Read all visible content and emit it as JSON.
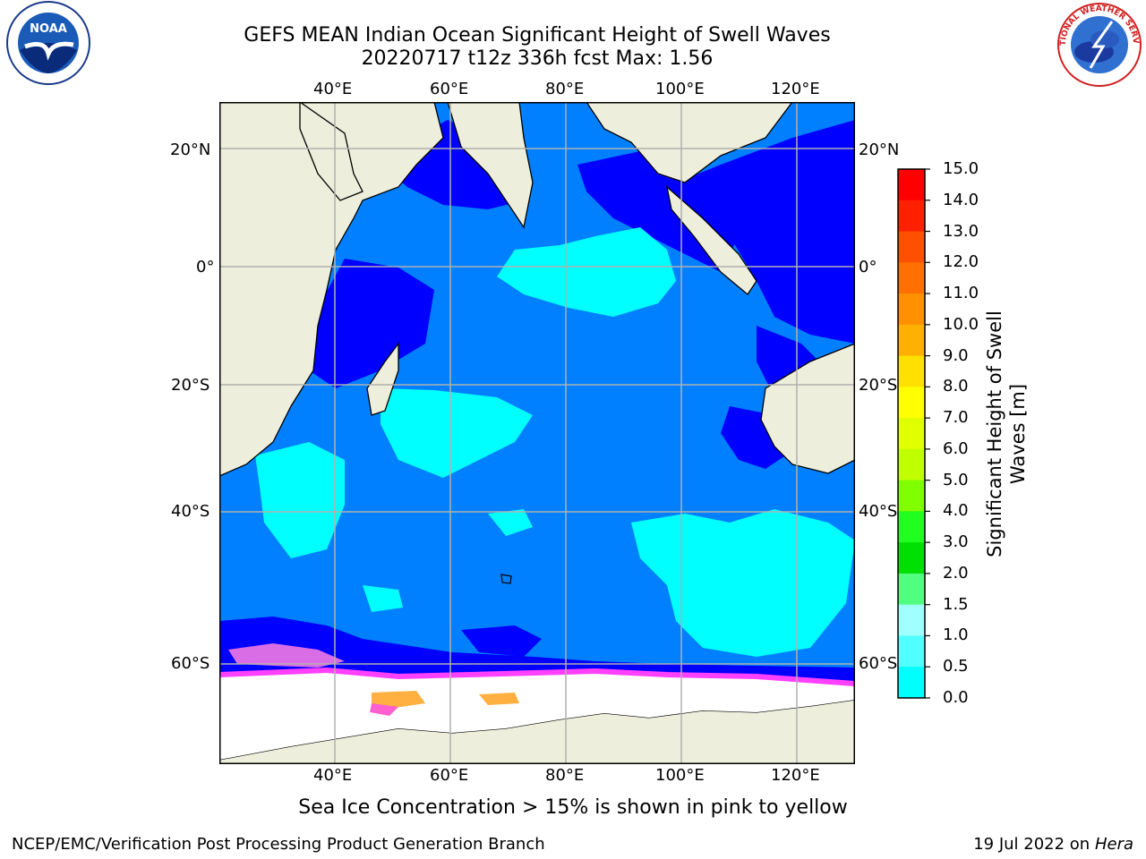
{
  "title_line1": "GEFS MEAN Indian Ocean Significant Height of Swell Waves",
  "title_line2": "20220717 t12z 336h fcst   Max: 1.56",
  "logos": {
    "left": "NOAA",
    "right": "NATIONAL WEATHER SERVICE"
  },
  "map": {
    "lon_labels": [
      "40°E",
      "60°E",
      "80°E",
      "100°E",
      "120°E"
    ],
    "lat_labels": [
      "20°N",
      "0°",
      "20°S",
      "40°S",
      "60°S"
    ],
    "extent": {
      "lon": [
        20,
        130
      ],
      "lat": [
        -72,
        27
      ]
    },
    "colors": {
      "land": "#eeeedc",
      "ocean_dark": "#0000ff",
      "ocean_mid": "#0080ff",
      "ocean_light": "#00ffff",
      "ice": "#ffffff",
      "ice_edge": "#ff40ff",
      "grid": "#b0b0b0"
    }
  },
  "colorbar": {
    "title": "Significant Height of Swell Waves [m]",
    "labels": [
      "15.0",
      "14.0",
      "13.0",
      "12.0",
      "11.0",
      "10.0",
      "9.0",
      "8.0",
      "7.0",
      "6.0",
      "5.0",
      "4.0",
      "3.0",
      "2.0",
      "1.5",
      "1.0",
      "0.5",
      "0.0"
    ],
    "colors": [
      "#ff0000",
      "#ff2000",
      "#ff5000",
      "#ff7000",
      "#ff9000",
      "#ffb000",
      "#ffe000",
      "#ffff00",
      "#e0ff00",
      "#c0ff00",
      "#80ff00",
      "#20ff20",
      "#00e000",
      "#50ff80",
      "#a0ffff",
      "#50ffff",
      "#00ffff",
      "#0080ff",
      "#0000ff"
    ]
  },
  "subcaption": "Sea Ice Concentration > 15% is shown in pink to yellow",
  "footer": {
    "left": "NCEP/EMC/Verification Post Processing Product Generation Branch",
    "date": "19 Jul 2022 on",
    "host": "Hera"
  }
}
